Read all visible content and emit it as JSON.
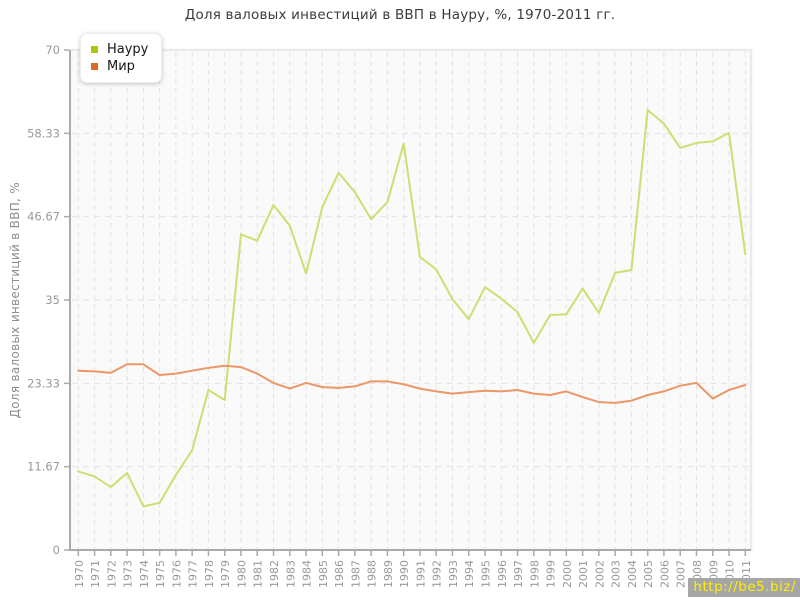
{
  "page": {
    "title": "Доля валовых инвестиций в ВВП в Науру, %, 1970-2011 гг.",
    "watermark": "http://be5.biz/"
  },
  "legend": {
    "items": [
      {
        "label": "Науру",
        "color": "#a4c90f"
      },
      {
        "label": "Мир",
        "color": "#dd6a1f"
      }
    ]
  },
  "chart_data": {
    "type": "line",
    "title": "Доля валовых инвестиций в ВВП в Науру, %, 1970-2011 гг.",
    "xlabel": "",
    "ylabel": "Доля валовых инвестиций в ВВП, %",
    "ylim": [
      0,
      70
    ],
    "yticks": [
      0,
      11.67,
      23.33,
      35,
      46.67,
      58.33,
      70
    ],
    "ytick_labels": [
      "0",
      "11.67",
      "23.33",
      "35",
      "46.67",
      "58.33",
      "70"
    ],
    "grid": true,
    "legend_position": "top-left",
    "x": [
      1970,
      1971,
      1972,
      1973,
      1974,
      1975,
      1976,
      1977,
      1978,
      1979,
      1980,
      1981,
      1982,
      1983,
      1984,
      1985,
      1986,
      1987,
      1988,
      1989,
      1990,
      1991,
      1992,
      1993,
      1994,
      1995,
      1996,
      1997,
      1998,
      1999,
      2000,
      2001,
      2002,
      2003,
      2004,
      2005,
      2006,
      2007,
      2008,
      2009,
      2010,
      2011
    ],
    "series": [
      {
        "name": "Науру",
        "color": "#cdde72",
        "legend_color": "#a4c90f",
        "values": [
          11.0,
          10.3,
          8.8,
          10.8,
          6.1,
          6.6,
          10.5,
          14.0,
          22.4,
          21.0,
          44.2,
          43.3,
          48.3,
          45.4,
          38.7,
          48.0,
          52.8,
          50.1,
          46.3,
          48.7,
          56.9,
          41.0,
          39.3,
          35.1,
          32.3,
          36.8,
          35.2,
          33.3,
          29.0,
          32.9,
          33.0,
          36.6,
          33.2,
          38.8,
          39.2,
          61.6,
          59.7,
          56.3,
          57.0,
          57.2,
          58.4,
          41.4
        ]
      },
      {
        "name": "Мир",
        "color": "#ec9768",
        "legend_color": "#dd6a1f",
        "values": [
          25.1,
          25.0,
          24.8,
          26.0,
          26.0,
          24.5,
          24.7,
          25.1,
          25.5,
          25.8,
          25.6,
          24.7,
          23.4,
          22.6,
          23.4,
          22.8,
          22.7,
          22.9,
          23.6,
          23.6,
          23.2,
          22.6,
          22.2,
          21.9,
          22.1,
          22.3,
          22.2,
          22.4,
          21.9,
          21.7,
          22.2,
          21.4,
          20.7,
          20.6,
          20.9,
          21.7,
          22.2,
          23.0,
          23.4,
          21.2,
          22.4,
          23.1
        ]
      }
    ],
    "colors": {
      "plot_bg": "#fafafa",
      "border": "#ebebeb",
      "grid": "#e3e3e3",
      "axis": "#aaaaaa",
      "tick_label": "#999999"
    }
  }
}
